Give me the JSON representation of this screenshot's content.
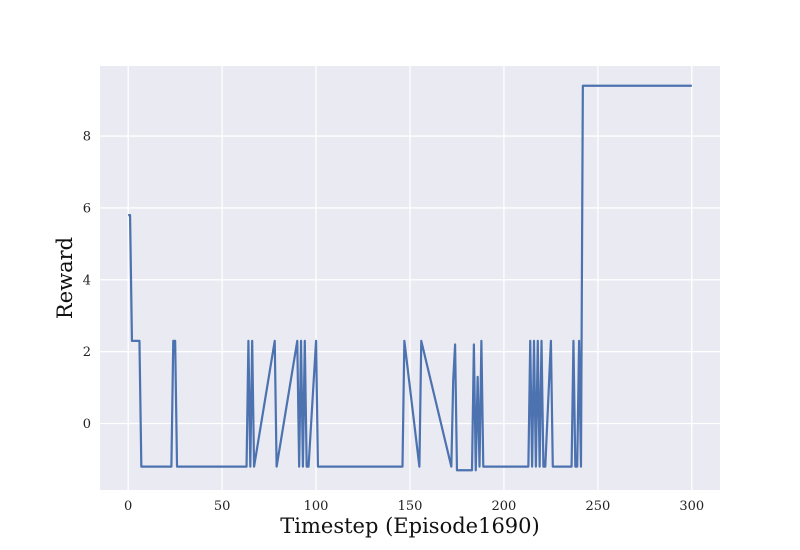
{
  "chart_data": {
    "type": "line",
    "xlabel": "Timestep (Episode1690)",
    "ylabel": "Reward",
    "xlim": [
      -15,
      315
    ],
    "ylim": [
      -1.85,
      9.95
    ],
    "x_ticks": [
      0,
      50,
      100,
      150,
      200,
      250,
      300
    ],
    "y_ticks": [
      0,
      2,
      4,
      6,
      8
    ],
    "grid": true,
    "background_color": "#EAEAF2",
    "grid_color": "#FFFFFF",
    "line_color": "#4C72B0",
    "series": [
      {
        "x": [
          0,
          1,
          2,
          6,
          7,
          23,
          24,
          25,
          26,
          63,
          64,
          65,
          66,
          67,
          78,
          79,
          90,
          91,
          92,
          93,
          94,
          95,
          96,
          100,
          101,
          146,
          147,
          155,
          156,
          172,
          173,
          174,
          175,
          176,
          183,
          184,
          185,
          186,
          187,
          188,
          189,
          190,
          213,
          214,
          215,
          216,
          217,
          218,
          219,
          220,
          221,
          222,
          225,
          226,
          236,
          237,
          238,
          239,
          240,
          241,
          242,
          300
        ],
        "y": [
          5.8,
          5.8,
          2.3,
          2.3,
          -1.2,
          -1.2,
          2.3,
          2.3,
          -1.2,
          -1.2,
          2.3,
          -1.2,
          2.3,
          -1.2,
          2.3,
          -1.2,
          2.3,
          -1.2,
          2.3,
          -1.2,
          2.3,
          -1.2,
          -1.2,
          2.3,
          -1.2,
          -1.2,
          2.3,
          -1.2,
          2.3,
          -1.2,
          1.2,
          2.2,
          -1.3,
          -1.3,
          -1.3,
          2.2,
          -1.3,
          1.3,
          -1.2,
          2.3,
          -1.2,
          -1.2,
          -1.2,
          2.3,
          -1.2,
          2.3,
          -1.2,
          2.3,
          -1.2,
          2.3,
          -1.2,
          -1.2,
          2.3,
          -1.2,
          -1.2,
          2.3,
          -1.2,
          -1.2,
          2.3,
          -1.2,
          9.4,
          9.4
        ]
      }
    ]
  }
}
